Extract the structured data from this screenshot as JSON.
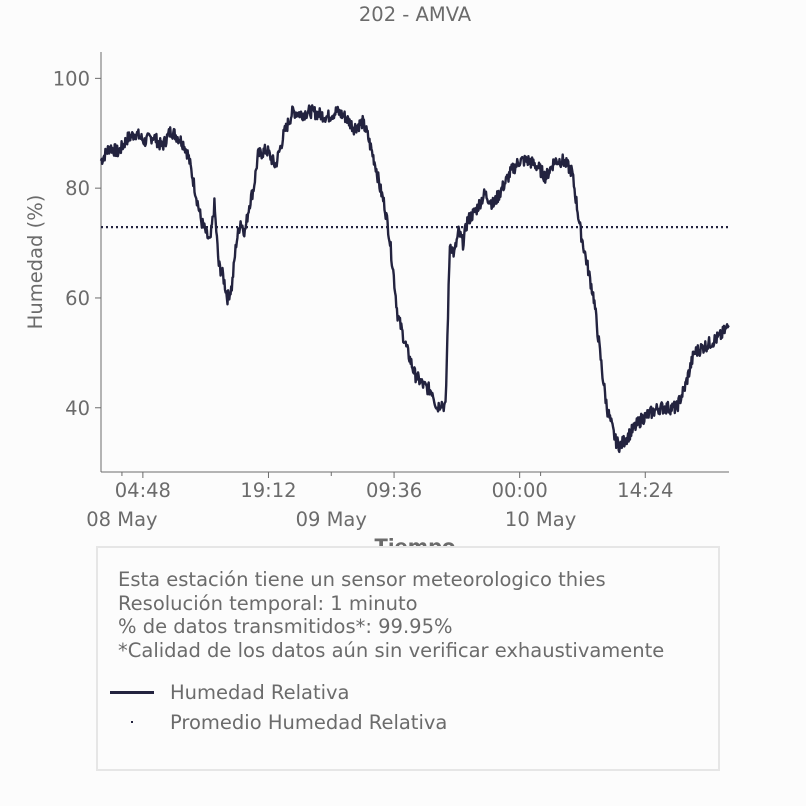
{
  "chart_data": {
    "type": "line",
    "title": "202 - AMVA",
    "xlabel": "Tiempo",
    "ylabel": "Humedad (%)",
    "ylim": [
      28.3,
      104.8
    ],
    "xlim_hours": [
      0,
      72
    ],
    "yticks": [
      40,
      60,
      80,
      100
    ],
    "xticks_time": [
      {
        "hour": 4.8,
        "label": "04:48"
      },
      {
        "hour": 19.2,
        "label": "19:12"
      },
      {
        "hour": 33.6,
        "label": "09:36"
      },
      {
        "hour": 48.0,
        "label": "00:00"
      },
      {
        "hour": 62.4,
        "label": "14:24"
      }
    ],
    "xticks_date": [
      {
        "hour": 2.4,
        "label": "08 May"
      },
      {
        "hour": 26.4,
        "label": "09 May"
      },
      {
        "hour": 50.4,
        "label": "10 May"
      }
    ],
    "grid": false,
    "legend_position": "bottom",
    "series": [
      {
        "name": "Humedad Relativa",
        "style": "solid",
        "color": "#23233f",
        "x": [
          0,
          1,
          2,
          3,
          4,
          5,
          6,
          7,
          8,
          9,
          9.5,
          10,
          10.5,
          11,
          11.5,
          12,
          12.5,
          13,
          13.5,
          14,
          14.5,
          15,
          15.5,
          16,
          16.5,
          17,
          17.5,
          18,
          19,
          20,
          21,
          22,
          23,
          24,
          25,
          26,
          27,
          28,
          29,
          30,
          30.5,
          31,
          31.5,
          32,
          32.5,
          33,
          33.5,
          34,
          35,
          36,
          37,
          38,
          38.5,
          39,
          39.5,
          40,
          40.5,
          41,
          41.5,
          42,
          43,
          44,
          45,
          46,
          47,
          48,
          49,
          50,
          51,
          52,
          53,
          54,
          55,
          56,
          56.5,
          57,
          57.5,
          58,
          58.5,
          59,
          59.5,
          60,
          60.5,
          61,
          61.5,
          62,
          63,
          64,
          65,
          66,
          67,
          68,
          69,
          70,
          71,
          72
        ],
        "y": [
          85,
          87.5,
          86.5,
          89,
          90,
          88.5,
          89.5,
          87.5,
          90.5,
          89,
          88,
          86,
          82,
          78,
          74,
          72,
          70,
          77,
          66,
          64,
          60,
          62,
          70,
          74,
          72,
          77,
          80,
          86,
          87,
          84,
          90,
          94,
          93.5,
          94,
          93.5,
          93,
          94,
          93,
          91,
          92,
          90,
          87,
          84,
          80,
          77,
          72,
          65,
          57,
          51,
          46,
          44,
          43,
          40,
          41,
          40,
          70,
          68,
          72,
          70,
          74,
          76,
          79,
          77,
          80,
          83,
          85,
          85,
          84,
          82,
          85,
          85,
          83,
          72,
          64,
          60,
          53,
          46,
          40,
          37,
          34,
          33,
          34,
          35,
          36,
          37,
          38,
          39,
          40,
          40,
          40,
          44,
          50,
          51,
          52,
          53,
          55
        ]
      },
      {
        "name": "Promedio Humedad Relativa",
        "style": "dotted",
        "color": "#23233f",
        "x": [
          0,
          72
        ],
        "y": [
          72.9,
          72.9
        ]
      }
    ]
  },
  "info": {
    "lines": [
      "Esta estación tiene un sensor meteorologico thies",
      "Resolución temporal: 1 minuto",
      "% de datos transmitidos*: 99.95%",
      "*Calidad de los datos aún sin verificar exhaustivamente"
    ]
  },
  "legend": {
    "items": [
      {
        "label": "Humedad Relativa",
        "marker": "line"
      },
      {
        "label": "Promedio Humedad Relativa",
        "marker": "dot"
      }
    ]
  },
  "colors": {
    "line": "#23233f",
    "text": "#6b6b6b",
    "axis": "#6b6b6b",
    "background": "#fcfcfc",
    "legend_border": "#e6e6e6"
  }
}
